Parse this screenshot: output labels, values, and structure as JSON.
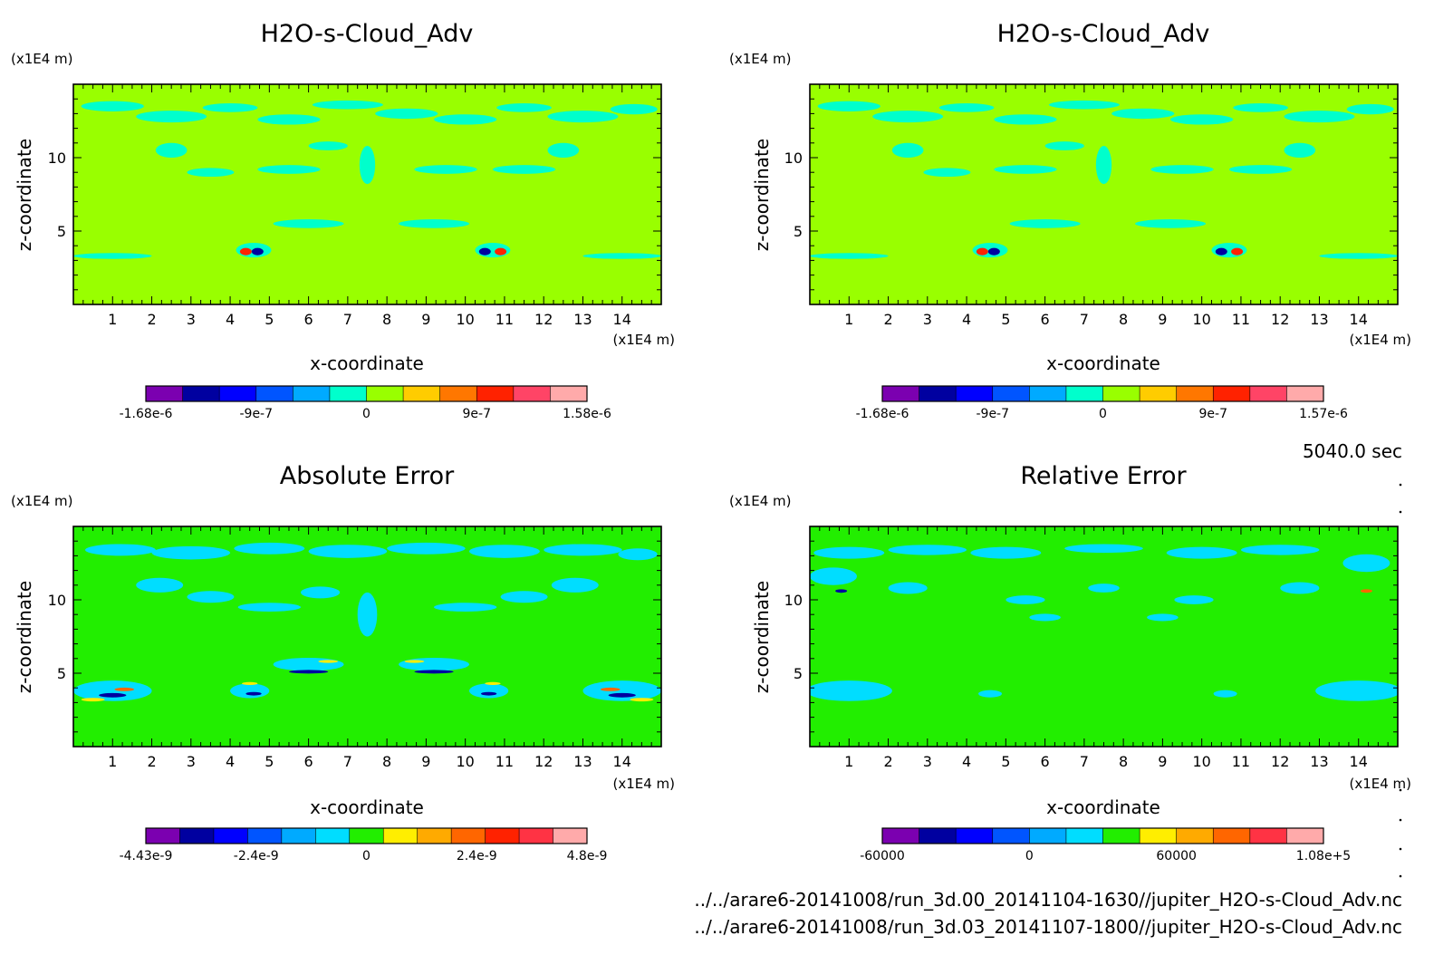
{
  "time_label": "5040.0 sec",
  "footer": {
    "file1": "../../arare6-20141008/run_3d.00_20141104-1630//jupiter_H2O-s-Cloud_Adv.nc",
    "file2": "../../arare6-20141008/run_3d.03_20141107-1800//jupiter_H2O-s-Cloud_Adv.nc"
  },
  "chart_data": [
    {
      "type": "heatmap",
      "title": "H2O-s-Cloud_Adv",
      "xlabel": "x-coordinate",
      "ylabel": "z-coordinate",
      "x_unit": "(x1E4 m)",
      "y_unit": "(x1E4 m)",
      "xlim": [
        0,
        15
      ],
      "ylim": [
        0,
        15
      ],
      "x_ticks": [
        1,
        2,
        3,
        4,
        5,
        6,
        7,
        8,
        9,
        10,
        11,
        12,
        13,
        14
      ],
      "y_ticks": [
        5,
        10
      ],
      "background_color": "#99ff00",
      "colorbar": {
        "colors": [
          "#7b00b0",
          "#0000a0",
          "#0000ff",
          "#0055ff",
          "#00aaff",
          "#00ffcc",
          "#99ff00",
          "#ffcc00",
          "#ff7700",
          "#ff2200",
          "#ff4466",
          "#ffaaaa"
        ],
        "tick_labels": [
          "-1.68e-6",
          "-9e-7",
          "0",
          "9e-7",
          "1.58e-6"
        ]
      },
      "features": [
        {
          "x": 1.0,
          "z": 13.5,
          "rx": 0.8,
          "rz": 0.35,
          "color": "#00ffcc"
        },
        {
          "x": 2.5,
          "z": 12.8,
          "rx": 0.9,
          "rz": 0.4,
          "color": "#00ffcc"
        },
        {
          "x": 4.0,
          "z": 13.4,
          "rx": 0.7,
          "rz": 0.3,
          "color": "#00ffcc"
        },
        {
          "x": 5.5,
          "z": 12.6,
          "rx": 0.8,
          "rz": 0.35,
          "color": "#00ffcc"
        },
        {
          "x": 7.0,
          "z": 13.6,
          "rx": 0.9,
          "rz": 0.3,
          "color": "#00ffcc"
        },
        {
          "x": 8.5,
          "z": 13.0,
          "rx": 0.8,
          "rz": 0.35,
          "color": "#00ffcc"
        },
        {
          "x": 10.0,
          "z": 12.6,
          "rx": 0.8,
          "rz": 0.35,
          "color": "#00ffcc"
        },
        {
          "x": 11.5,
          "z": 13.4,
          "rx": 0.7,
          "rz": 0.3,
          "color": "#00ffcc"
        },
        {
          "x": 13.0,
          "z": 12.8,
          "rx": 0.9,
          "rz": 0.4,
          "color": "#00ffcc"
        },
        {
          "x": 14.3,
          "z": 13.3,
          "rx": 0.6,
          "rz": 0.35,
          "color": "#00ffcc"
        },
        {
          "x": 2.5,
          "z": 10.5,
          "rx": 0.4,
          "rz": 0.5,
          "color": "#00ffcc"
        },
        {
          "x": 3.5,
          "z": 9.0,
          "rx": 0.6,
          "rz": 0.3,
          "color": "#00ffcc"
        },
        {
          "x": 5.5,
          "z": 9.2,
          "rx": 0.8,
          "rz": 0.3,
          "color": "#00ffcc"
        },
        {
          "x": 6.5,
          "z": 10.8,
          "rx": 0.5,
          "rz": 0.3,
          "color": "#00ffcc"
        },
        {
          "x": 7.5,
          "z": 9.5,
          "rx": 0.2,
          "rz": 1.3,
          "color": "#00ffcc"
        },
        {
          "x": 9.5,
          "z": 9.2,
          "rx": 0.8,
          "rz": 0.3,
          "color": "#00ffcc"
        },
        {
          "x": 11.5,
          "z": 9.2,
          "rx": 0.8,
          "rz": 0.3,
          "color": "#00ffcc"
        },
        {
          "x": 12.5,
          "z": 10.5,
          "rx": 0.4,
          "rz": 0.5,
          "color": "#00ffcc"
        },
        {
          "x": 6.0,
          "z": 5.5,
          "rx": 0.9,
          "rz": 0.3,
          "color": "#00ffcc"
        },
        {
          "x": 9.2,
          "z": 5.5,
          "rx": 0.9,
          "rz": 0.3,
          "color": "#00ffcc"
        },
        {
          "x": 1.0,
          "z": 3.3,
          "rx": 1.0,
          "rz": 0.2,
          "color": "#00ffcc"
        },
        {
          "x": 14.0,
          "z": 3.3,
          "rx": 1.0,
          "rz": 0.2,
          "color": "#00ffcc"
        },
        {
          "x": 4.6,
          "z": 3.7,
          "rx": 0.45,
          "rz": 0.5,
          "color": "#00ffcc"
        },
        {
          "x": 10.7,
          "z": 3.7,
          "rx": 0.45,
          "rz": 0.5,
          "color": "#00ffcc"
        },
        {
          "x": 4.4,
          "z": 3.6,
          "rx": 0.15,
          "rz": 0.25,
          "color": "#ff2200"
        },
        {
          "x": 4.7,
          "z": 3.6,
          "rx": 0.15,
          "rz": 0.25,
          "color": "#0000a0"
        },
        {
          "x": 10.5,
          "z": 3.6,
          "rx": 0.15,
          "rz": 0.25,
          "color": "#0000a0"
        },
        {
          "x": 10.9,
          "z": 3.6,
          "rx": 0.15,
          "rz": 0.25,
          "color": "#ff2200"
        }
      ]
    },
    {
      "type": "heatmap",
      "title": "H2O-s-Cloud_Adv",
      "xlabel": "x-coordinate",
      "ylabel": "z-coordinate",
      "x_unit": "(x1E4 m)",
      "y_unit": "(x1E4 m)",
      "xlim": [
        0,
        15
      ],
      "ylim": [
        0,
        15
      ],
      "x_ticks": [
        1,
        2,
        3,
        4,
        5,
        6,
        7,
        8,
        9,
        10,
        11,
        12,
        13,
        14
      ],
      "y_ticks": [
        5,
        10
      ],
      "background_color": "#99ff00",
      "colorbar": {
        "colors": [
          "#7b00b0",
          "#0000a0",
          "#0000ff",
          "#0055ff",
          "#00aaff",
          "#00ffcc",
          "#99ff00",
          "#ffcc00",
          "#ff7700",
          "#ff2200",
          "#ff4466",
          "#ffaaaa"
        ],
        "tick_labels": [
          "-1.68e-6",
          "-9e-7",
          "0",
          "9e-7",
          "1.57e-6"
        ]
      },
      "features": [
        {
          "x": 1.0,
          "z": 13.5,
          "rx": 0.8,
          "rz": 0.35,
          "color": "#00ffcc"
        },
        {
          "x": 2.5,
          "z": 12.8,
          "rx": 0.9,
          "rz": 0.4,
          "color": "#00ffcc"
        },
        {
          "x": 4.0,
          "z": 13.4,
          "rx": 0.7,
          "rz": 0.3,
          "color": "#00ffcc"
        },
        {
          "x": 5.5,
          "z": 12.6,
          "rx": 0.8,
          "rz": 0.35,
          "color": "#00ffcc"
        },
        {
          "x": 7.0,
          "z": 13.6,
          "rx": 0.9,
          "rz": 0.3,
          "color": "#00ffcc"
        },
        {
          "x": 8.5,
          "z": 13.0,
          "rx": 0.8,
          "rz": 0.35,
          "color": "#00ffcc"
        },
        {
          "x": 10.0,
          "z": 12.6,
          "rx": 0.8,
          "rz": 0.35,
          "color": "#00ffcc"
        },
        {
          "x": 11.5,
          "z": 13.4,
          "rx": 0.7,
          "rz": 0.3,
          "color": "#00ffcc"
        },
        {
          "x": 13.0,
          "z": 12.8,
          "rx": 0.9,
          "rz": 0.4,
          "color": "#00ffcc"
        },
        {
          "x": 14.3,
          "z": 13.3,
          "rx": 0.6,
          "rz": 0.35,
          "color": "#00ffcc"
        },
        {
          "x": 2.5,
          "z": 10.5,
          "rx": 0.4,
          "rz": 0.5,
          "color": "#00ffcc"
        },
        {
          "x": 3.5,
          "z": 9.0,
          "rx": 0.6,
          "rz": 0.3,
          "color": "#00ffcc"
        },
        {
          "x": 5.5,
          "z": 9.2,
          "rx": 0.8,
          "rz": 0.3,
          "color": "#00ffcc"
        },
        {
          "x": 6.5,
          "z": 10.8,
          "rx": 0.5,
          "rz": 0.3,
          "color": "#00ffcc"
        },
        {
          "x": 7.5,
          "z": 9.5,
          "rx": 0.2,
          "rz": 1.3,
          "color": "#00ffcc"
        },
        {
          "x": 9.5,
          "z": 9.2,
          "rx": 0.8,
          "rz": 0.3,
          "color": "#00ffcc"
        },
        {
          "x": 11.5,
          "z": 9.2,
          "rx": 0.8,
          "rz": 0.3,
          "color": "#00ffcc"
        },
        {
          "x": 12.5,
          "z": 10.5,
          "rx": 0.4,
          "rz": 0.5,
          "color": "#00ffcc"
        },
        {
          "x": 6.0,
          "z": 5.5,
          "rx": 0.9,
          "rz": 0.3,
          "color": "#00ffcc"
        },
        {
          "x": 9.2,
          "z": 5.5,
          "rx": 0.9,
          "rz": 0.3,
          "color": "#00ffcc"
        },
        {
          "x": 1.0,
          "z": 3.3,
          "rx": 1.0,
          "rz": 0.2,
          "color": "#00ffcc"
        },
        {
          "x": 14.0,
          "z": 3.3,
          "rx": 1.0,
          "rz": 0.2,
          "color": "#00ffcc"
        },
        {
          "x": 4.6,
          "z": 3.7,
          "rx": 0.45,
          "rz": 0.5,
          "color": "#00ffcc"
        },
        {
          "x": 10.7,
          "z": 3.7,
          "rx": 0.45,
          "rz": 0.5,
          "color": "#00ffcc"
        },
        {
          "x": 4.4,
          "z": 3.6,
          "rx": 0.15,
          "rz": 0.25,
          "color": "#ff2200"
        },
        {
          "x": 4.7,
          "z": 3.6,
          "rx": 0.15,
          "rz": 0.25,
          "color": "#0000a0"
        },
        {
          "x": 10.5,
          "z": 3.6,
          "rx": 0.15,
          "rz": 0.25,
          "color": "#0000a0"
        },
        {
          "x": 10.9,
          "z": 3.6,
          "rx": 0.15,
          "rz": 0.25,
          "color": "#ff2200"
        }
      ]
    },
    {
      "type": "heatmap",
      "title": "Absolute Error",
      "xlabel": "x-coordinate",
      "ylabel": "z-coordinate",
      "x_unit": "(x1E4 m)",
      "y_unit": "(x1E4 m)",
      "xlim": [
        0,
        15
      ],
      "ylim": [
        0,
        15
      ],
      "x_ticks": [
        1,
        2,
        3,
        4,
        5,
        6,
        7,
        8,
        9,
        10,
        11,
        12,
        13,
        14
      ],
      "y_ticks": [
        5,
        10
      ],
      "background_color": "#22ee00",
      "colorbar": {
        "colors": [
          "#7b00b0",
          "#0000a0",
          "#0000ff",
          "#0055ff",
          "#00aaff",
          "#00ddff",
          "#22ee00",
          "#ffee00",
          "#ffaa00",
          "#ff6600",
          "#ff2200",
          "#ff3344",
          "#ffaaaa"
        ],
        "tick_labels": [
          "-4.43e-9",
          "-2.4e-9",
          "0",
          "2.4e-9",
          "4.8e-9"
        ]
      },
      "features": [
        {
          "x": 1.2,
          "z": 13.4,
          "rx": 0.9,
          "rz": 0.4,
          "color": "#00ddff"
        },
        {
          "x": 3.0,
          "z": 13.2,
          "rx": 1.0,
          "rz": 0.45,
          "color": "#00ddff"
        },
        {
          "x": 5.0,
          "z": 13.5,
          "rx": 0.9,
          "rz": 0.4,
          "color": "#00ddff"
        },
        {
          "x": 7.0,
          "z": 13.3,
          "rx": 1.0,
          "rz": 0.45,
          "color": "#00ddff"
        },
        {
          "x": 9.0,
          "z": 13.5,
          "rx": 1.0,
          "rz": 0.4,
          "color": "#00ddff"
        },
        {
          "x": 11.0,
          "z": 13.3,
          "rx": 0.9,
          "rz": 0.45,
          "color": "#00ddff"
        },
        {
          "x": 13.0,
          "z": 13.4,
          "rx": 1.0,
          "rz": 0.4,
          "color": "#00ddff"
        },
        {
          "x": 14.4,
          "z": 13.1,
          "rx": 0.5,
          "rz": 0.4,
          "color": "#00ddff"
        },
        {
          "x": 2.2,
          "z": 11.0,
          "rx": 0.6,
          "rz": 0.5,
          "color": "#00ddff"
        },
        {
          "x": 3.5,
          "z": 10.2,
          "rx": 0.6,
          "rz": 0.4,
          "color": "#00ddff"
        },
        {
          "x": 5.0,
          "z": 9.5,
          "rx": 0.8,
          "rz": 0.3,
          "color": "#00ddff"
        },
        {
          "x": 6.3,
          "z": 10.5,
          "rx": 0.5,
          "rz": 0.4,
          "color": "#00ddff"
        },
        {
          "x": 7.5,
          "z": 9.0,
          "rx": 0.25,
          "rz": 1.5,
          "color": "#00ddff"
        },
        {
          "x": 10.0,
          "z": 9.5,
          "rx": 0.8,
          "rz": 0.3,
          "color": "#00ddff"
        },
        {
          "x": 11.5,
          "z": 10.2,
          "rx": 0.6,
          "rz": 0.4,
          "color": "#00ddff"
        },
        {
          "x": 12.8,
          "z": 11.0,
          "rx": 0.6,
          "rz": 0.5,
          "color": "#00ddff"
        },
        {
          "x": 6.0,
          "z": 5.6,
          "rx": 0.9,
          "rz": 0.45,
          "color": "#00ddff"
        },
        {
          "x": 9.2,
          "z": 5.6,
          "rx": 0.9,
          "rz": 0.45,
          "color": "#00ddff"
        },
        {
          "x": 1.0,
          "z": 3.8,
          "rx": 1.0,
          "rz": 0.7,
          "color": "#00ddff"
        },
        {
          "x": 14.0,
          "z": 3.8,
          "rx": 1.0,
          "rz": 0.7,
          "color": "#00ddff"
        },
        {
          "x": 4.5,
          "z": 3.8,
          "rx": 0.5,
          "rz": 0.5,
          "color": "#00ddff"
        },
        {
          "x": 10.6,
          "z": 3.8,
          "rx": 0.5,
          "rz": 0.5,
          "color": "#00ddff"
        },
        {
          "x": 6.0,
          "z": 5.1,
          "rx": 0.5,
          "rz": 0.12,
          "color": "#0000a0"
        },
        {
          "x": 6.5,
          "z": 5.8,
          "rx": 0.25,
          "rz": 0.1,
          "color": "#ffee00"
        },
        {
          "x": 9.2,
          "z": 5.1,
          "rx": 0.5,
          "rz": 0.12,
          "color": "#0000a0"
        },
        {
          "x": 8.7,
          "z": 5.8,
          "rx": 0.25,
          "rz": 0.1,
          "color": "#ffee00"
        },
        {
          "x": 1.0,
          "z": 3.5,
          "rx": 0.35,
          "rz": 0.15,
          "color": "#0000a0"
        },
        {
          "x": 0.5,
          "z": 3.2,
          "rx": 0.3,
          "rz": 0.12,
          "color": "#ffee00"
        },
        {
          "x": 1.3,
          "z": 3.9,
          "rx": 0.25,
          "rz": 0.12,
          "color": "#ff6600"
        },
        {
          "x": 14.0,
          "z": 3.5,
          "rx": 0.35,
          "rz": 0.15,
          "color": "#0000a0"
        },
        {
          "x": 14.5,
          "z": 3.2,
          "rx": 0.3,
          "rz": 0.12,
          "color": "#ffee00"
        },
        {
          "x": 13.7,
          "z": 3.9,
          "rx": 0.25,
          "rz": 0.12,
          "color": "#ff6600"
        },
        {
          "x": 4.6,
          "z": 3.6,
          "rx": 0.2,
          "rz": 0.12,
          "color": "#0000a0"
        },
        {
          "x": 4.5,
          "z": 4.3,
          "rx": 0.2,
          "rz": 0.1,
          "color": "#ffee00"
        },
        {
          "x": 10.6,
          "z": 3.6,
          "rx": 0.2,
          "rz": 0.12,
          "color": "#0000a0"
        },
        {
          "x": 10.7,
          "z": 4.3,
          "rx": 0.2,
          "rz": 0.1,
          "color": "#ffee00"
        }
      ]
    },
    {
      "type": "heatmap",
      "title": "Relative Error",
      "xlabel": "x-coordinate",
      "ylabel": "z-coordinate",
      "x_unit": "(x1E4 m)",
      "y_unit": "(x1E4 m)",
      "xlim": [
        0,
        15
      ],
      "ylim": [
        0,
        15
      ],
      "x_ticks": [
        1,
        2,
        3,
        4,
        5,
        6,
        7,
        8,
        9,
        10,
        11,
        12,
        13,
        14
      ],
      "y_ticks": [
        5,
        10
      ],
      "background_color": "#22ee00",
      "colorbar": {
        "colors": [
          "#7b00b0",
          "#0000a0",
          "#0000ff",
          "#0055ff",
          "#00aaff",
          "#00ddff",
          "#22ee00",
          "#ffee00",
          "#ffaa00",
          "#ff6600",
          "#ff3344",
          "#ffaaaa"
        ],
        "tick_labels": [
          "-60000",
          "0",
          "60000",
          "1.08e+5"
        ]
      },
      "features": [
        {
          "x": 1.0,
          "z": 13.2,
          "rx": 0.9,
          "rz": 0.4,
          "color": "#00ddff"
        },
        {
          "x": 3.0,
          "z": 13.4,
          "rx": 1.0,
          "rz": 0.35,
          "color": "#00ddff"
        },
        {
          "x": 5.0,
          "z": 13.2,
          "rx": 0.9,
          "rz": 0.4,
          "color": "#00ddff"
        },
        {
          "x": 7.5,
          "z": 13.5,
          "rx": 1.0,
          "rz": 0.3,
          "color": "#00ddff"
        },
        {
          "x": 10.0,
          "z": 13.2,
          "rx": 0.9,
          "rz": 0.4,
          "color": "#00ddff"
        },
        {
          "x": 12.0,
          "z": 13.4,
          "rx": 1.0,
          "rz": 0.35,
          "color": "#00ddff"
        },
        {
          "x": 14.2,
          "z": 12.5,
          "rx": 0.6,
          "rz": 0.6,
          "color": "#00ddff"
        },
        {
          "x": 0.6,
          "z": 11.6,
          "rx": 0.6,
          "rz": 0.6,
          "color": "#00ddff"
        },
        {
          "x": 2.5,
          "z": 10.8,
          "rx": 0.5,
          "rz": 0.4,
          "color": "#00ddff"
        },
        {
          "x": 5.5,
          "z": 10.0,
          "rx": 0.5,
          "rz": 0.3,
          "color": "#00ddff"
        },
        {
          "x": 7.5,
          "z": 10.8,
          "rx": 0.4,
          "rz": 0.3,
          "color": "#00ddff"
        },
        {
          "x": 9.8,
          "z": 10.0,
          "rx": 0.5,
          "rz": 0.3,
          "color": "#00ddff"
        },
        {
          "x": 12.5,
          "z": 10.8,
          "rx": 0.5,
          "rz": 0.4,
          "color": "#00ddff"
        },
        {
          "x": 6.0,
          "z": 8.8,
          "rx": 0.4,
          "rz": 0.25,
          "color": "#00ddff"
        },
        {
          "x": 9.0,
          "z": 8.8,
          "rx": 0.4,
          "rz": 0.25,
          "color": "#00ddff"
        },
        {
          "x": 1.0,
          "z": 3.8,
          "rx": 1.1,
          "rz": 0.7,
          "color": "#00ddff"
        },
        {
          "x": 14.0,
          "z": 3.8,
          "rx": 1.1,
          "rz": 0.7,
          "color": "#00ddff"
        },
        {
          "x": 4.6,
          "z": 3.6,
          "rx": 0.3,
          "rz": 0.25,
          "color": "#00ddff"
        },
        {
          "x": 10.6,
          "z": 3.6,
          "rx": 0.3,
          "rz": 0.25,
          "color": "#00ddff"
        },
        {
          "x": 0.8,
          "z": 10.6,
          "rx": 0.15,
          "rz": 0.12,
          "color": "#0000a0"
        },
        {
          "x": 14.2,
          "z": 10.6,
          "rx": 0.15,
          "rz": 0.12,
          "color": "#ff6600"
        }
      ]
    }
  ]
}
